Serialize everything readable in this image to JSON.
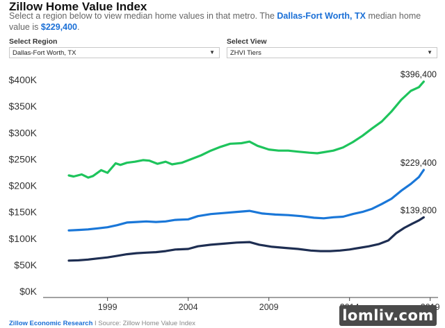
{
  "header": {
    "title": "Zillow Home Value Index",
    "subtitle_prefix": "Select a region below to view median home values in that metro. The",
    "subtitle_metro": "Dallas-Fort Worth, TX",
    "subtitle_mid": "median home value is",
    "subtitle_value": "$229,400",
    "subtitle_end": "."
  },
  "controls": {
    "region_label": "Select Region",
    "region_value": "Dallas-Fort Worth, TX",
    "view_label": "Select View",
    "view_value": "ZHVI Tiers"
  },
  "footer": {
    "brand": "Zillow Economic Research",
    "separator": "I",
    "source": "Source: Zillow Home Value Index"
  },
  "watermark": "lomliv.com",
  "chart_data": {
    "type": "line",
    "title": "",
    "xlabel": "",
    "ylabel": "",
    "xlim": [
      1996.3,
      2019.4
    ],
    "ylim": [
      0,
      400000
    ],
    "x_ticks": [
      1999,
      2004,
      2009,
      2014,
      2019
    ],
    "x_tick_labels": [
      "1999",
      "2004",
      "2009",
      "2014",
      "2019"
    ],
    "y_ticks": [
      0,
      50000,
      100000,
      150000,
      200000,
      250000,
      300000,
      350000,
      400000
    ],
    "y_tick_labels": [
      "$0K",
      "$50K",
      "$100K",
      "$150K",
      "$200K",
      "$250K",
      "$300K",
      "$350K",
      "$400K"
    ],
    "grid": false,
    "series": [
      {
        "color": "#1ec45c",
        "end_label": "$396,400",
        "points": [
          [
            1996.6,
            219000
          ],
          [
            1996.9,
            217000
          ],
          [
            1997.4,
            221000
          ],
          [
            1997.8,
            215000
          ],
          [
            1998.1,
            218000
          ],
          [
            1998.6,
            229000
          ],
          [
            1999.0,
            224000
          ],
          [
            1999.5,
            242000
          ],
          [
            1999.8,
            239000
          ],
          [
            2000.2,
            243000
          ],
          [
            2000.7,
            245000
          ],
          [
            2001.2,
            248000
          ],
          [
            2001.6,
            247000
          ],
          [
            2002.1,
            241000
          ],
          [
            2002.6,
            245000
          ],
          [
            2003.0,
            240000
          ],
          [
            2003.6,
            243000
          ],
          [
            2004.2,
            250000
          ],
          [
            2004.8,
            257000
          ],
          [
            2005.4,
            266000
          ],
          [
            2006.0,
            273000
          ],
          [
            2006.6,
            279000
          ],
          [
            2007.3,
            280000
          ],
          [
            2007.8,
            283000
          ],
          [
            2008.3,
            275000
          ],
          [
            2009.0,
            268000
          ],
          [
            2009.6,
            266000
          ],
          [
            2010.2,
            266000
          ],
          [
            2010.8,
            264000
          ],
          [
            2011.5,
            262000
          ],
          [
            2012.0,
            261000
          ],
          [
            2012.4,
            263000
          ],
          [
            2013.0,
            266000
          ],
          [
            2013.6,
            272000
          ],
          [
            2014.2,
            282000
          ],
          [
            2014.8,
            294000
          ],
          [
            2015.4,
            308000
          ],
          [
            2016.0,
            321000
          ],
          [
            2016.6,
            340000
          ],
          [
            2017.2,
            362000
          ],
          [
            2017.8,
            379000
          ],
          [
            2018.3,
            386000
          ],
          [
            2018.6,
            396400
          ]
        ]
      },
      {
        "color": "#1a77d8",
        "end_label": "$229,400",
        "points": [
          [
            1996.6,
            115000
          ],
          [
            1997.2,
            116000
          ],
          [
            1997.8,
            117000
          ],
          [
            1998.4,
            119000
          ],
          [
            1999.0,
            121000
          ],
          [
            1999.6,
            125000
          ],
          [
            2000.2,
            130000
          ],
          [
            2000.8,
            131000
          ],
          [
            2001.4,
            132000
          ],
          [
            2002.0,
            131000
          ],
          [
            2002.6,
            132000
          ],
          [
            2003.2,
            135000
          ],
          [
            2004.0,
            136000
          ],
          [
            2004.6,
            142000
          ],
          [
            2005.4,
            146000
          ],
          [
            2006.2,
            148000
          ],
          [
            2007.0,
            150000
          ],
          [
            2007.8,
            152000
          ],
          [
            2008.6,
            147000
          ],
          [
            2009.4,
            145000
          ],
          [
            2010.2,
            144000
          ],
          [
            2011.0,
            142000
          ],
          [
            2011.8,
            139000
          ],
          [
            2012.4,
            138000
          ],
          [
            2013.0,
            140000
          ],
          [
            2013.6,
            141000
          ],
          [
            2014.2,
            146000
          ],
          [
            2014.8,
            150000
          ],
          [
            2015.4,
            156000
          ],
          [
            2016.0,
            165000
          ],
          [
            2016.6,
            175000
          ],
          [
            2017.2,
            190000
          ],
          [
            2017.8,
            203000
          ],
          [
            2018.3,
            216000
          ],
          [
            2018.6,
            229400
          ]
        ]
      },
      {
        "color": "#1e2e52",
        "end_label": "$139,800",
        "points": [
          [
            1996.6,
            58000
          ],
          [
            1997.2,
            58500
          ],
          [
            1997.8,
            60000
          ],
          [
            1998.4,
            62000
          ],
          [
            1999.0,
            64000
          ],
          [
            1999.6,
            67000
          ],
          [
            2000.2,
            70000
          ],
          [
            2000.8,
            72000
          ],
          [
            2001.4,
            73000
          ],
          [
            2002.0,
            74000
          ],
          [
            2002.6,
            76000
          ],
          [
            2003.2,
            79000
          ],
          [
            2004.0,
            80000
          ],
          [
            2004.6,
            85000
          ],
          [
            2005.4,
            88000
          ],
          [
            2006.2,
            90000
          ],
          [
            2007.0,
            92000
          ],
          [
            2007.8,
            93000
          ],
          [
            2008.4,
            88000
          ],
          [
            2009.2,
            84000
          ],
          [
            2010.0,
            82000
          ],
          [
            2010.8,
            80000
          ],
          [
            2011.6,
            77000
          ],
          [
            2012.2,
            76000
          ],
          [
            2012.8,
            76000
          ],
          [
            2013.4,
            77000
          ],
          [
            2014.0,
            79000
          ],
          [
            2014.6,
            82000
          ],
          [
            2015.2,
            85000
          ],
          [
            2015.8,
            89000
          ],
          [
            2016.4,
            96000
          ],
          [
            2016.9,
            110000
          ],
          [
            2017.4,
            120000
          ],
          [
            2017.9,
            128000
          ],
          [
            2018.3,
            134000
          ],
          [
            2018.6,
            139800
          ]
        ]
      }
    ]
  }
}
